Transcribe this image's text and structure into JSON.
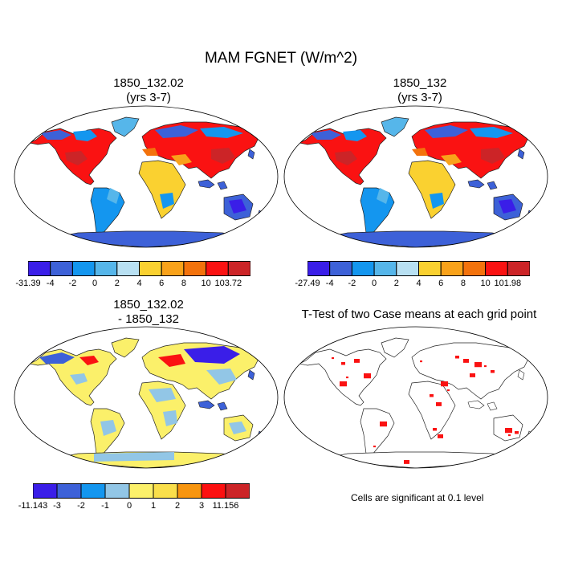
{
  "title": "MAM FGNET (W/m^2)",
  "panels": [
    {
      "title1": "1850_132.02",
      "title2": "(yrs 3-7)",
      "colorbar": {
        "labels": [
          "-31.39",
          "-4",
          "-2",
          "0",
          "2",
          "4",
          "6",
          "8",
          "10",
          "103.72"
        ],
        "colors": [
          "#3a1ee8",
          "#3d61d8",
          "#1496ef",
          "#56b6ea",
          "#b8e0f2",
          "#fad130",
          "#f9a21a",
          "#f3720c",
          "#fa1212",
          "#cc2427"
        ]
      }
    },
    {
      "title1": "1850_132",
      "title2": "(yrs 3-7)",
      "colorbar": {
        "labels": [
          "-27.49",
          "-4",
          "-2",
          "0",
          "2",
          "4",
          "6",
          "8",
          "10",
          "101.98"
        ],
        "colors": [
          "#3a1ee8",
          "#3d61d8",
          "#1496ef",
          "#56b6ea",
          "#b8e0f2",
          "#fad130",
          "#f9a21a",
          "#f3720c",
          "#fa1212",
          "#cc2427"
        ]
      }
    },
    {
      "title1": "1850_132.02",
      "title2": "- 1850_132",
      "colorbar": {
        "labels": [
          "-11.143",
          "-3",
          "-2",
          "-1",
          "0",
          "1",
          "2",
          "3",
          "11.156"
        ],
        "colors": [
          "#3a1ee8",
          "#3d61d8",
          "#1496ef",
          "#92c6e6",
          "#fbf06a",
          "#fadf4b",
          "#f7950f",
          "#fc1010",
          "#cc2427"
        ]
      }
    },
    {
      "title1": "T-Test of two Case means at each grid point",
      "note": "Cells are significant at 0.1 level"
    }
  ]
}
